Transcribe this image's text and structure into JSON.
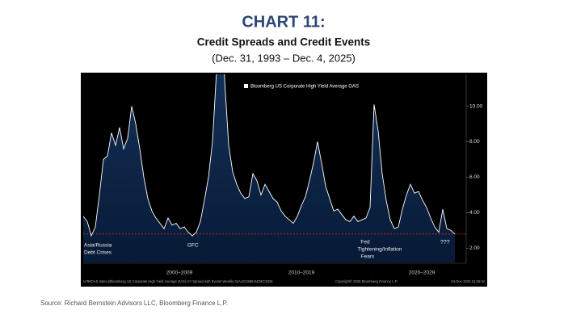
{
  "header": {
    "title": "CHART 11:",
    "subtitle": "Credit Spreads and Credit Events",
    "date_range": "(Dec. 31, 1993 – Dec. 4, 2025)"
  },
  "chart_data": {
    "type": "area",
    "series": [
      {
        "name": "Bloomberg US Corporate High Yield Average OAS",
        "color": "#ffffff",
        "values": [
          3.8,
          3.5,
          2.7,
          3.2,
          5.0,
          7.0,
          7.2,
          8.5,
          7.8,
          8.8,
          7.6,
          8.2,
          10.0,
          9.0,
          7.6,
          6.0,
          4.8,
          4.1,
          3.7,
          3.4,
          3.1,
          3.7,
          3.3,
          3.4,
          3.1,
          3.2,
          2.9,
          2.7,
          2.9,
          3.5,
          4.7,
          6.0,
          8.0,
          12.0,
          19.5,
          11.5,
          7.8,
          6.3,
          5.6,
          5.1,
          4.8,
          4.9,
          6.2,
          5.8,
          5.0,
          5.6,
          5.2,
          4.8,
          4.6,
          4.1,
          3.8,
          3.6,
          3.4,
          3.8,
          4.4,
          4.9,
          5.8,
          6.8,
          8.0,
          6.8,
          5.5,
          4.8,
          4.1,
          4.2,
          3.9,
          3.6,
          3.5,
          3.8,
          3.5,
          3.6,
          3.7,
          4.3,
          10.1,
          8.6,
          6.2,
          4.7,
          3.6,
          3.1,
          3.2,
          4.2,
          5.0,
          5.6,
          5.1,
          5.2,
          4.7,
          4.3,
          3.7,
          3.2,
          2.9,
          4.2,
          3.1,
          3.0,
          2.8
        ]
      }
    ],
    "ylim": [
      1.2,
      11.8
    ],
    "yticks": [
      {
        "value": 2,
        "label": "2.00"
      },
      {
        "value": 4,
        "label": "4.00"
      },
      {
        "value": 6,
        "label": "6.00"
      },
      {
        "value": 8,
        "label": "8.00"
      },
      {
        "value": 10,
        "label": "10.00"
      }
    ],
    "xticks": [
      {
        "value": 23.8,
        "label": "2000–2009"
      },
      {
        "value": 54,
        "label": "2010–2019"
      },
      {
        "value": 83.8,
        "label": "2020–2029"
      }
    ],
    "reference_line": 2.8,
    "annotations": [
      "Asia/Russia",
      "Debt Crises",
      "GFC",
      "Fed",
      "Tightening/Inflation",
      "Fears",
      "???"
    ],
    "footer_left": "LF98OAS Index (Bloomberg US Corporate High Yield Average OAS) HY Spread with Events Weekly 31AUG1986-04DEC2025",
    "footer_mid": "Copyright© 2025 Bloomberg Finance L.P.",
    "footer_right": "04-Dec-2025 15:06:44"
  },
  "source": "Source: Richard Bernstein Advisors LLC, Bloomberg Finance L.P."
}
